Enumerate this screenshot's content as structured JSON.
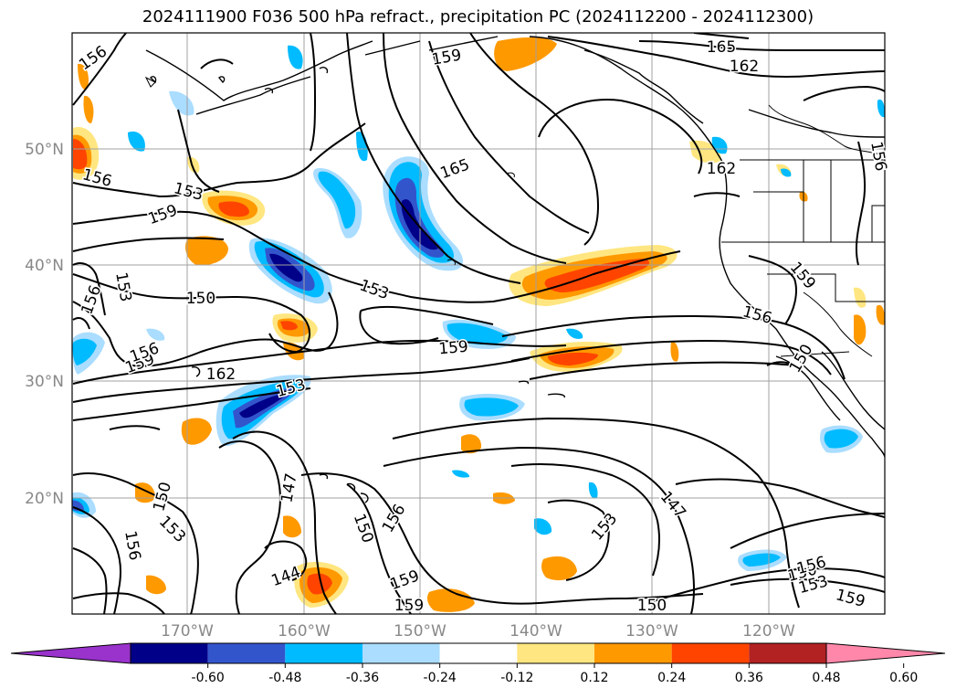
{
  "title": "2024111900 F036 500 hPa refract., precipitation PC (2024112200 - 2024112300)",
  "lat_labels": [
    "50°N",
    "40°N",
    "30°N",
    "20°N"
  ],
  "lon_labels": [
    "170°W",
    "160°W",
    "150°W",
    "140°W",
    "130°W",
    "120°W"
  ],
  "contour_labels": [
    {
      "text": "156"
    },
    {
      "text": "159"
    },
    {
      "text": "165"
    },
    {
      "text": "162"
    },
    {
      "text": "165"
    },
    {
      "text": "156"
    },
    {
      "text": "153"
    },
    {
      "text": "159"
    },
    {
      "text": "153"
    },
    {
      "text": "156"
    },
    {
      "text": "150"
    },
    {
      "text": "153"
    },
    {
      "text": "159"
    },
    {
      "text": "156"
    },
    {
      "text": "159"
    },
    {
      "text": "162"
    },
    {
      "text": "153"
    },
    {
      "text": "147"
    },
    {
      "text": "150"
    },
    {
      "text": "153"
    },
    {
      "text": "156"
    },
    {
      "text": "144"
    },
    {
      "text": "150"
    },
    {
      "text": "156"
    },
    {
      "text": "159"
    },
    {
      "text": "159"
    },
    {
      "text": "153"
    },
    {
      "text": "147"
    },
    {
      "text": "150"
    },
    {
      "text": "150"
    },
    {
      "text": "153"
    },
    {
      "text": "156"
    },
    {
      "text": "159"
    },
    {
      "text": "162"
    },
    {
      "text": "159"
    },
    {
      "text": "156"
    },
    {
      "text": "156"
    },
    {
      "text": "150"
    }
  ],
  "colorbar": {
    "ticks": [
      "-0.60",
      "-0.48",
      "-0.36",
      "-0.24",
      "-0.12",
      "0.12",
      "0.24",
      "0.36",
      "0.48",
      "0.60"
    ],
    "colors": [
      "#9933cc",
      "#000088",
      "#3355cc",
      "#00bbff",
      "#aaddff",
      "#ffffff",
      "#ffe680",
      "#ff9900",
      "#ff4400",
      "#b22222",
      "#ff88aa"
    ]
  }
}
